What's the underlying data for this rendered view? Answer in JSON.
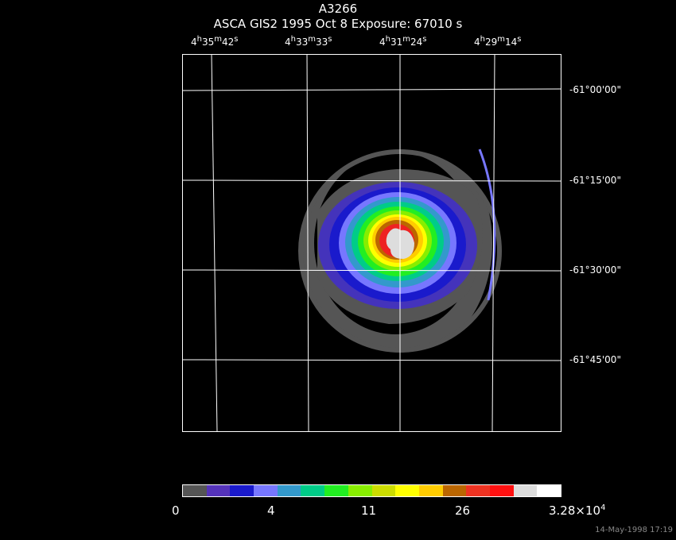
{
  "header": {
    "object": "A3266",
    "info": "ASCA GIS2   1995 Oct  8    Exposure: 67010 s"
  },
  "ra_labels": [
    {
      "h": "4",
      "m": "35",
      "s": "42"
    },
    {
      "h": "4",
      "m": "33",
      "s": "33"
    },
    {
      "h": "4",
      "m": "31",
      "s": "24"
    },
    {
      "h": "4",
      "m": "29",
      "s": "14"
    }
  ],
  "dec_labels": [
    "-61°00'00\"",
    "-61°15'00\"",
    "-61°30'00\"",
    "-61°45'00\""
  ],
  "colorbar": {
    "colors": [
      "#555555",
      "#5533bb",
      "#1a1acc",
      "#7777ff",
      "#3399cc",
      "#00cc88",
      "#22ee22",
      "#88ee00",
      "#ccdd00",
      "#ffff00",
      "#ffcc00",
      "#bb6600",
      "#ee3322",
      "#ff1111",
      "#dddddd",
      "#ffffff"
    ],
    "labels": [
      "0",
      "4",
      "11",
      "26",
      "3.28×10"
    ],
    "top_exp": "4"
  },
  "timestamp": "14-May-1998 17:19"
}
